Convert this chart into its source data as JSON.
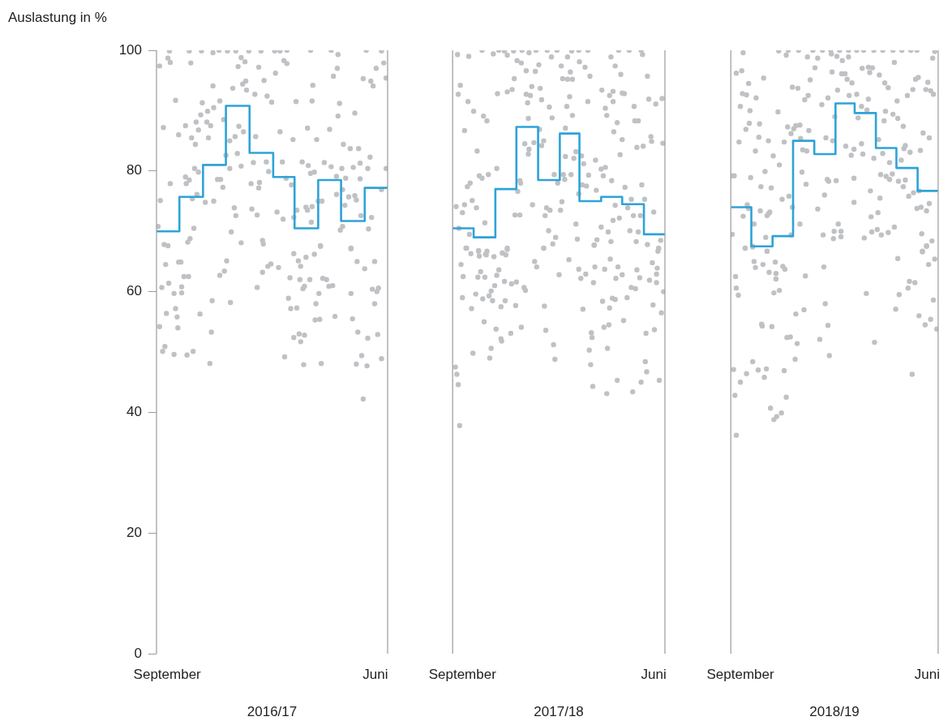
{
  "chart_data": [
    {
      "type": "scatter",
      "xlabel": "2016/17",
      "ylabel": "Auslastung in %",
      "xlim": [
        "2016-09-01",
        "2017-07-01"
      ],
      "xticks": [
        {
          "value": "2016-09-15",
          "label": "September"
        },
        {
          "value": "2017-06-15",
          "label": "Juni"
        }
      ],
      "ylim": [
        0,
        100
      ],
      "yticks": [
        0,
        20,
        40,
        60,
        80,
        100
      ],
      "series": [
        {
          "color": "#bfc1c4",
          "marker": "circle",
          "x": [
            "2016-09-05",
            "2016-09-18",
            "2016-09-16",
            "2016-09-19",
            "2016-10-14",
            "2016-10-16",
            "2016-10-30",
            "2016-11-14",
            "2016-11-22",
            "2016-12-03",
            "2016-12-14",
            "2016-12-31",
            "2017-01-16",
            "2017-02-03",
            "2017-02-10",
            "2017-02-19",
            "2017-03-22",
            "2017-04-18",
            "2017-04-27",
            "2017-06-03",
            "2017-06-23",
            "2016-12-21",
            "2016-12-17",
            "2016-12-26",
            "2017-01-13",
            "2017-02-04",
            "2017-02-15",
            "2017-02-19",
            "2017-04-26",
            "2017-04-21",
            "2017-06-16",
            "2017-06-26",
            "2017-06-29",
            "2017-05-30",
            "2017-06-09",
            "2017-06-12",
            "2016-11-14",
            "2016-12-10",
            "2016-12-23",
            "2016-12-27",
            "2016-12-28",
            "2017-01-08",
            "2017-01-20",
            "2017-01-24",
            "2017-01-30",
            "2017-03-25",
            "2017-03-24",
            "2017-03-03",
            "2016-09-26",
            "2016-10-31",
            "2016-11-23",
            "2017-04-29",
            "2016-11-07",
            "2016-11-15",
            "2016-10-29",
            "2017-04-27",
            "2017-05-19",
            "2016-11-28",
            "2016-09-10",
            "2016-10-09",
            "2016-10-23",
            "2016-11-06",
            "2016-11-11",
            "2016-12-18",
            "2016-10-26",
            "2016-09-30",
            "2016-10-17",
            "2016-11-08",
            "2016-10-22",
            "2016-12-06",
            "2016-12-13",
            "2016-12-24",
            "2017-01-09",
            "2017-02-10",
            "2017-02-27",
            "2017-03-18",
            "2017-03-30",
            "2017-04-16",
            "2017-05-04",
            "2017-05-13",
            "2017-05-24",
            "2017-06-08",
            "2016-12-01",
            "2016-12-16",
            "2017-01-06",
            "2016-12-21",
            "2016-12-06",
            "2017-01-23",
            "2017-02-13",
            "2017-03-11",
            "2017-03-19",
            "2017-04-09",
            "2017-04-18",
            "2017-05-02",
            "2017-05-17",
            "2017-05-26",
            "2017-06-05",
            "2017-06-29",
            "2016-10-21",
            "2016-10-26",
            "2017-01-26",
            "2017-03-22",
            "2017-03-27",
            "2016-10-09",
            "2016-10-14",
            "2016-11-20",
            "2016-11-24",
            "2017-01-14",
            "2017-01-03",
            "2017-02-18",
            "2017-02-25",
            "2017-04-25",
            "2017-05-07",
            "2017-05-26",
            "2016-09-19",
            "2016-10-10",
            "2016-11-27",
            "2017-01-13",
            "2017-05-03",
            "2017-06-23",
            "2017-04-25",
            "2017-05-11",
            "2017-05-19",
            "2017-05-21",
            "2016-10-18",
            "2016-10-24",
            "2016-09-06",
            "2016-11-04",
            "2016-11-15",
            "2017-04-06",
            "2017-04-01",
            "2017-05-06",
            "2016-12-12",
            "2017-01-04",
            "2016-12-14",
            "2017-01-11",
            "2017-02-06",
            "2017-02-14",
            "2017-03-04",
            "2017-03-16",
            "2017-03-18",
            "2017-03-24",
            "2017-02-28",
            "2017-03-23",
            "2017-05-27",
            "2017-06-10",
            "2016-10-20",
            "2016-09-03",
            "2016-12-08",
            "2017-05-03",
            "2017-04-30",
            "2017-06-06",
            "2016-10-15",
            "2016-10-12",
            "2016-09-11",
            "2016-09-16",
            "2016-12-21",
            "2017-01-18",
            "2017-01-19",
            "2017-04-04",
            "2017-05-14",
            "2016-09-13",
            "2016-09-30",
            "2016-10-03",
            "2016-12-02",
            "2016-11-23",
            "2016-11-29",
            "2017-01-18",
            "2017-01-25",
            "2017-01-29",
            "2017-02-08",
            "2017-02-28",
            "2017-03-06",
            "2017-03-09",
            "2017-03-16",
            "2017-03-27",
            "2017-04-04",
            "2017-05-14",
            "2017-05-22",
            "2017-06-01",
            "2017-06-14",
            "2016-10-07",
            "2016-10-13",
            "2016-09-08",
            "2016-09-17",
            "2016-09-24",
            "2016-10-04",
            "2016-10-04",
            "2017-01-11",
            "2017-02-23",
            "2017-03-08",
            "2017-03-21",
            "2017-04-07",
            "2017-04-12",
            "2017-04-15",
            "2017-04-20",
            "2017-03-12",
            "2017-03-14",
            "2017-04-02",
            "2017-05-14",
            "2017-06-11",
            "2017-06-17",
            "2017-06-19",
            "2016-11-13",
            "2016-12-07",
            "2017-02-21",
            "2017-02-24",
            "2017-03-04",
            "2017-03-29",
            "2017-06-14",
            "2016-09-26",
            "2016-09-14",
            "2016-09-28",
            "2016-10-28",
            "2017-03-28",
            "2017-04-03",
            "2017-04-23",
            "2017-05-16",
            "2016-09-05",
            "2016-09-29",
            "2016-11-12",
            "2017-05-23",
            "2017-06-05",
            "2017-06-18",
            "2017-02-28",
            "2017-03-07",
            "2017-03-14",
            "2017-03-09",
            "2016-09-12",
            "2016-09-09",
            "2016-09-24",
            "2016-10-11",
            "2016-10-19",
            "2016-11-10",
            "2017-02-16",
            "2017-03-13",
            "2017-04-05",
            "2017-05-21",
            "2017-06-04",
            "2017-05-28",
            "2017-06-23",
            "2017-05-30"
          ],
          "values": [
            97.4,
            99.9,
            98.7,
            98,
            99.9,
            97.9,
            99.9,
            99.6,
            100,
            99.9,
            99.9,
            99.9,
            99.9,
            99.9,
            99.9,
            100,
            100,
            100,
            99.3,
            100,
            99.9,
            98.8,
            97.3,
            98.1,
            97.2,
            96.2,
            98.3,
            97.8,
            97,
            95.7,
            97,
            97.9,
            95.4,
            95.3,
            94.9,
            94.1,
            94.1,
            93.7,
            94.4,
            94.9,
            93.4,
            92.7,
            95,
            92.4,
            91.4,
            94.2,
            91.6,
            91.5,
            91.7,
            91.3,
            91.6,
            91.2,
            89.9,
            90.5,
            89.3,
            89.1,
            89.6,
            88.5,
            87.2,
            87.5,
            88.1,
            88.1,
            87.5,
            87.4,
            86.8,
            86,
            85.5,
            85.5,
            84.4,
            85,
            85.7,
            86.5,
            85.7,
            86.5,
            85.2,
            87.1,
            85.2,
            86.9,
            84.4,
            83.7,
            83.7,
            82.3,
            82.6,
            82.9,
            81.4,
            80.8,
            80.4,
            81.5,
            81.5,
            81.5,
            80.9,
            81.4,
            80.7,
            80.4,
            80.6,
            81.3,
            80.4,
            80.4,
            80.4,
            79.8,
            79.9,
            79.6,
            79.8,
            79,
            78.5,
            78.6,
            78.6,
            78.1,
            77.9,
            78.8,
            77.7,
            79.1,
            78.8,
            78.7,
            77.9,
            77.9,
            77.3,
            77.2,
            76.9,
            76.9,
            76.1,
            75.7,
            75.9,
            75.2,
            75.4,
            76.1,
            75.1,
            74.8,
            75,
            75,
            75,
            74.3,
            73.9,
            73.7,
            72.6,
            72.7,
            73.2,
            72,
            73.5,
            74,
            73.5,
            74.1,
            72.3,
            71.5,
            72.6,
            72.3,
            70.5,
            70.8,
            69.9,
            70.8,
            70.2,
            70.4,
            68.8,
            68.2,
            67.8,
            67.6,
            68.1,
            68.5,
            67.9,
            67.5,
            67.2,
            64.5,
            64.9,
            64.9,
            65.1,
            62.7,
            63.4,
            63.2,
            64.2,
            64.6,
            64,
            66.3,
            65.1,
            64.2,
            65.7,
            66.2,
            67.6,
            67.1,
            65,
            63.8,
            65,
            62.5,
            62.5,
            60.7,
            61.4,
            59.7,
            60.8,
            59.8,
            60.7,
            62.3,
            62,
            62,
            62.2,
            62,
            60.9,
            61,
            60.5,
            60.9,
            59.7,
            59.7,
            60.4,
            60,
            60.6,
            58.5,
            58.2,
            58.9,
            57.2,
            57.3,
            58,
            58,
            57.2,
            56.4,
            55.8,
            56.3,
            55.3,
            55.4,
            55.9,
            55.5,
            54.2,
            54,
            53.3,
            53.3,
            52.3,
            52.9,
            52.4,
            53,
            52.8,
            51.7,
            50.9,
            50.1,
            49.6,
            49.5,
            50.1,
            48.1,
            49.2,
            47.9,
            48.1,
            48,
            47.7,
            49.4,
            48.9,
            42.2
          ]
        },
        {
          "type": "step",
          "color": "#2ea3d8",
          "x": [
            "2016-09",
            "2016-10",
            "2016-11",
            "2016-12",
            "2017-01",
            "2017-02",
            "2017-03",
            "2017-04",
            "2017-05",
            "2017-06",
            "2017-07"
          ],
          "values": [
            70,
            75.7,
            81,
            90.8,
            83,
            79,
            70.5,
            78.5,
            71.7,
            77.2,
            77.2
          ]
        }
      ]
    },
    {
      "type": "scatter",
      "xlabel": "2017/18",
      "xlim": [
        "2017-09-01",
        "2018-07-01"
      ],
      "xticks": [
        {
          "value": "2017-09-15",
          "label": "September"
        },
        {
          "value": "2018-06-15",
          "label": "Juni"
        }
      ],
      "ylim": [
        0,
        100
      ],
      "yticks": [
        0,
        20,
        40,
        60,
        80,
        100
      ],
      "tick_labels": "x",
      "series": [
        {
          "color": "#bfc1c4",
          "marker": "circle",
          "x": [
            "2017-09-08",
            "2017-09-24",
            "2017-10-13",
            "2017-10-29",
            "2017-11-06",
            "2017-11-14",
            "2017-11-18",
            "2017-11-27",
            "2017-12-09",
            "2017-12-19",
            "2017-12-29",
            "2018-01-14",
            "2018-01-28",
            "2018-02-18",
            "2018-02-28",
            "2018-03-13",
            "2018-04-26",
            "2018-05-11",
            "2018-05-28",
            "2018-05-30",
            "2017-12-02",
            "2017-12-08",
            "2017-12-15",
            "2018-01-02",
            "2017-12-28",
            "2018-01-20",
            "2018-02-03",
            "2018-02-12",
            "2018-02-16",
            "2018-03-01",
            "2018-03-09",
            "2018-02-05",
            "2018-02-12",
            "2018-02-19",
            "2018-03-16",
            "2018-04-15",
            "2018-04-21",
            "2018-04-29",
            "2018-06-06",
            "2017-09-12",
            "2017-09-09",
            "2017-11-28",
            "2017-11-25",
            "2017-11-18",
            "2017-11-04",
            "2017-12-23",
            "2018-01-04",
            "2017-12-15",
            "2017-12-21",
            "2017-12-17",
            "2018-01-06",
            "2018-01-17",
            "2018-02-15",
            "2018-02-11",
            "2018-03-13",
            "2018-04-02",
            "2018-04-13",
            "2018-04-18",
            "2018-04-18",
            "2018-05-01",
            "2018-05-04",
            "2018-04-07",
            "2018-04-09",
            "2018-06-08",
            "2018-06-18",
            "2018-06-27",
            "2017-09-23",
            "2017-10-01",
            "2017-10-15",
            "2017-10-20",
            "2017-09-18",
            "2018-05-18",
            "2018-04-24",
            "2018-05-19",
            "2018-05-24",
            "2018-04-19",
            "2018-05-01",
            "2018-06-11",
            "2018-06-12",
            "2018-06-28",
            "2018-05-22",
            "2018-05-31",
            "2018-04-28",
            "2017-12-18",
            "2018-01-21",
            "2018-02-19",
            "2018-02-09",
            "2018-01-03",
            "2018-01-09",
            "2017-12-13",
            "2017-12-19",
            "2017-12-26",
            "2018-01-06",
            "2017-12-18",
            "2017-10-06",
            "2018-02-09",
            "2018-02-21",
            "2018-02-24",
            "2018-03-04",
            "2018-03-07",
            "2018-03-24",
            "2018-04-01",
            "2018-04-07",
            "2018-04-04",
            "2018-04-16",
            "2018-03-14",
            "2018-01-24",
            "2018-02-06",
            "2018-02-08",
            "2018-02-17",
            "2018-01-29",
            "2017-11-03",
            "2017-10-22",
            "2017-10-09",
            "2017-10-13",
            "2017-09-26",
            "2017-09-22",
            "2017-12-06",
            "2017-12-07",
            "2017-12-03",
            "2018-03-05",
            "2018-03-11",
            "2018-03-25",
            "2018-05-05",
            "2018-05-29",
            "2018-02-28",
            "2018-06-02",
            "2018-05-14",
            "2017-09-06",
            "2017-09-18",
            "2017-09-29",
            "2017-10-05",
            "2017-09-15",
            "2017-12-24",
            "2018-01-13",
            "2018-01-18",
            "2018-02-02",
            "2018-02-04",
            "2018-01-11",
            "2017-11-29",
            "2017-12-06",
            "2018-04-21",
            "2018-05-09",
            "2018-05-17",
            "2018-05-27",
            "2018-06-15",
            "2018-04-27",
            "2018-04-18",
            "2018-04-01",
            "2018-04-11",
            "2018-05-12",
            "2018-05-24",
            "2018-02-24",
            "2017-10-17",
            "2017-09-10",
            "2017-09-25",
            "2018-01-16",
            "2018-01-26",
            "2018-01-22",
            "2018-01-09",
            "2018-02-26",
            "2018-03-26",
            "2018-03-22",
            "2018-04-15",
            "2018-05-21",
            "2018-06-06",
            "2018-06-25",
            "2018-06-22",
            "2017-09-21",
            "2017-10-08",
            "2017-10-18",
            "2017-11-11",
            "2017-11-18",
            "2017-09-20",
            "2017-09-27",
            "2017-10-08",
            "2017-10-09",
            "2017-10-20",
            "2017-10-19",
            "2017-10-30",
            "2017-11-11",
            "2017-11-16",
            "2017-11-18",
            "2018-01-09",
            "2018-03-22",
            "2018-06-22",
            "2018-06-21",
            "2017-09-13",
            "2017-09-16",
            "2017-10-11",
            "2017-10-07",
            "2017-10-17",
            "2017-11-06",
            "2017-11-03",
            "2017-12-27",
            "2017-12-30",
            "2018-02-14",
            "2018-01-31",
            "2018-02-28",
            "2018-03-10",
            "2018-03-03",
            "2018-03-23",
            "2018-04-06",
            "2018-04-14",
            "2018-04-25",
            "2018-05-01",
            "2018-04-22",
            "2018-03-21",
            "2018-05-22",
            "2018-05-26",
            "2018-06-13",
            "2018-06-20",
            "2018-06-19",
            "2018-06-09",
            "2018-06-19",
            "2018-06-29",
            "2017-11-14",
            "2017-11-24",
            "2017-12-01",
            "2017-12-12",
            "2017-12-14",
            "2017-10-31",
            "2017-10-26",
            "2017-10-04",
            "2017-09-15",
            "2017-10-14",
            "2017-10-23",
            "2017-10-28",
            "2017-11-15",
            "2017-11-09",
            "2017-11-30",
            "2017-09-28",
            "2018-01-10",
            "2018-03-06",
            "2018-04-03",
            "2018-04-17",
            "2018-04-21",
            "2018-04-13",
            "2018-05-08",
            "2018-05-14",
            "2018-05-20",
            "2018-06-14",
            "2018-06-26",
            "2017-10-16",
            "2017-11-02",
            "2017-11-23",
            "2017-12-08",
            "2017-11-09",
            "2017-11-10",
            "2018-01-12",
            "2018-03-18",
            "2018-03-19",
            "2018-04-05",
            "2018-04-12",
            "2018-05-03",
            "2018-06-04",
            "2018-06-16",
            "2017-09-30",
            "2017-10-26",
            "2017-10-24",
            "2018-01-23",
            "2018-01-25",
            "2018-03-15",
            "2018-04-10",
            "2018-03-17",
            "2017-09-05",
            "2017-09-07",
            "2017-09-09",
            "2018-06-03",
            "2018-06-05",
            "2018-04-24",
            "2018-03-20",
            "2018-04-09",
            "2018-05-16",
            "2018-05-28",
            "2018-06-23",
            "2017-09-11"
          ],
          "values": [
            99.3,
            99,
            100,
            99.4,
            100,
            99.9,
            99.2,
            99.9,
            100,
            99.6,
            100,
            100,
            100,
            99.9,
            100,
            100,
            100,
            100,
            100,
            99.3,
            98.3,
            97.9,
            96.6,
            97.6,
            96.5,
            98.9,
            97.4,
            98.9,
            96.4,
            98.1,
            97.2,
            95.3,
            95.2,
            95.2,
            95.7,
            98.9,
            97.4,
            96,
            95.7,
            94.2,
            92.7,
            95.3,
            93.5,
            93.1,
            92.8,
            94,
            93.7,
            92.7,
            92.5,
            91.3,
            91.8,
            90.6,
            92.3,
            90.7,
            91.5,
            93.4,
            92.5,
            93.2,
            91.5,
            92.9,
            92.8,
            90.4,
            89.2,
            91.9,
            91.1,
            92,
            91.5,
            89.9,
            89.1,
            88.3,
            86.7,
            90.7,
            88,
            88.3,
            88.3,
            86.5,
            85.2,
            85.7,
            84.9,
            84.6,
            83.9,
            84.1,
            82.7,
            88.7,
            88.8,
            89.2,
            87.1,
            86.9,
            85,
            84.5,
            83.6,
            84.7,
            84.2,
            82.8,
            83.3,
            82.4,
            82.1,
            83.2,
            82.5,
            81.2,
            81.8,
            80.3,
            80.6,
            79.2,
            78.4,
            79.3,
            79.4,
            79.4,
            78.6,
            79.4,
            78,
            80.4,
            79.4,
            79.2,
            78.8,
            78,
            77.4,
            78.4,
            78,
            76.6,
            77.7,
            77.5,
            76.8,
            77.3,
            77.7,
            76.2,
            75.3,
            75.3,
            74.1,
            74.4,
            75.1,
            73.9,
            73.1,
            74.4,
            73.9,
            73.5,
            73.5,
            74.9,
            72.6,
            72.7,
            72.7,
            74.3,
            73.9,
            72.6,
            72.6,
            73.2,
            72.2,
            71.8,
            70.7,
            69.9,
            70.1,
            69.9,
            71.2,
            71.4,
            70.5,
            69.5,
            70.1,
            69,
            67.9,
            67.2,
            68.7,
            68.6,
            67.7,
            68.3,
            68.3,
            67.8,
            68.5,
            67.2,
            67.2,
            66.7,
            66.2,
            66.4,
            67,
            67.2,
            66.3,
            66.8,
            65.9,
            66.7,
            66.1,
            65.8,
            66.4,
            66.1,
            67.2,
            67.2,
            67.7,
            67.1,
            66.7,
            64.5,
            62.5,
            63.3,
            62.4,
            62.4,
            63.6,
            62.7,
            65,
            64.1,
            65.3,
            62.8,
            63.7,
            62.9,
            62.2,
            64.1,
            63.7,
            65.4,
            64.1,
            62.8,
            62.2,
            61.5,
            63.6,
            62.3,
            64.8,
            63.9,
            62.9,
            61.9,
            61.5,
            60,
            61.7,
            61.3,
            61.6,
            60.7,
            60.2,
            61,
            60.1,
            59.6,
            59,
            58.8,
            59.3,
            58.5,
            58.5,
            57.5,
            57.7,
            57.2,
            57.6,
            57.1,
            58.4,
            58.9,
            58.7,
            57.3,
            59,
            60.7,
            60.5,
            57.8,
            56.5,
            55,
            53.8,
            53.1,
            54.1,
            52.2,
            51.8,
            53.6,
            53.2,
            52.4,
            54.1,
            54.5,
            55.2,
            53.1,
            53.7,
            49.8,
            50.6,
            49,
            51.2,
            48.8,
            50.3,
            50.6,
            47.9,
            47.5,
            46.3,
            44.6,
            48.4,
            46.7,
            45.3,
            44.3,
            43.1,
            43.4,
            45,
            45.3,
            37.8
          ]
        },
        {
          "type": "step",
          "color": "#2ea3d8",
          "x": [
            "2017-09",
            "2017-10",
            "2017-11",
            "2017-12",
            "2018-01",
            "2018-02",
            "2018-03",
            "2018-04",
            "2018-05",
            "2018-06",
            "2018-07"
          ],
          "values": [
            70.5,
            69,
            77,
            87.3,
            78.5,
            86.2,
            75,
            75.7,
            74.5,
            69.5,
            69.5
          ]
        }
      ]
    },
    {
      "type": "scatter",
      "xlabel": "2018/19",
      "xlim": [
        "2018-09-01",
        "2019-07-01"
      ],
      "xticks": [
        {
          "value": "2018-09-15",
          "label": "September"
        },
        {
          "value": "2019-06-15",
          "label": "Juni"
        }
      ],
      "ylim": [
        0,
        100
      ],
      "yticks": [
        0,
        20,
        40,
        60,
        80,
        100
      ],
      "tick_labels": "x",
      "series": [
        {
          "color": "#bfc1c4",
          "marker": "circle",
          "x": [
            "2018-09-19",
            "2018-11-10",
            "2018-11-21",
            "2018-11-24",
            "2018-12-09",
            "2018-12-30",
            "2019-01-13",
            "2019-01-25",
            "2019-02-07",
            "2019-02-20",
            "2019-03-04",
            "2019-03-14",
            "2019-03-29",
            "2019-04-11",
            "2019-04-26",
            "2019-05-09",
            "2019-05-22",
            "2019-05-31",
            "2019-06-26",
            "2019-06-23",
            "2018-12-22",
            "2019-01-06",
            "2019-01-26",
            "2019-02-03",
            "2019-02-11",
            "2019-02-20",
            "2019-04-28",
            "2019-01-02",
            "2018-09-09",
            "2018-09-17",
            "2018-09-27",
            "2018-10-19",
            "2018-11-30",
            "2018-12-08",
            "2018-12-26",
            "2019-01-27",
            "2019-02-10",
            "2019-02-15",
            "2019-02-18",
            "2019-02-25",
            "2019-03-12",
            "2019-03-21",
            "2019-03-27",
            "2019-03-23",
            "2019-04-06",
            "2019-04-14",
            "2019-04-19",
            "2019-05-29",
            "2019-06-02",
            "2019-06-16",
            "2019-06-13",
            "2019-06-20",
            "2019-06-24",
            "2019-05-25",
            "2019-05-17",
            "2018-09-18",
            "2018-09-24",
            "2018-10-08",
            "2018-09-15",
            "2018-09-29",
            "2018-11-09",
            "2018-12-18",
            "2018-12-23",
            "2019-01-12",
            "2019-01-21",
            "2019-02-04",
            "2019-02-21",
            "2019-03-04",
            "2019-03-21",
            "2019-03-11",
            "2019-03-19",
            "2019-05-02",
            "2019-04-15",
            "2019-04-26",
            "2019-05-03",
            "2019-04-13",
            "2019-01-31",
            "2019-03-06",
            "2018-09-28",
            "2018-10-13",
            "2018-09-23",
            "2018-11-23",
            "2018-12-02",
            "2018-12-05",
            "2018-12-11",
            "2018-11-28",
            "2018-12-24",
            "2019-05-11",
            "2019-06-09",
            "2019-06-18",
            "2018-09-13",
            "2018-10-12",
            "2018-10-26",
            "2018-11-18",
            "2018-12-12",
            "2019-01-18",
            "2019-01-28",
            "2019-04-05",
            "2018-10-07",
            "2018-11-02",
            "2018-11-11",
            "2018-12-15",
            "2018-12-21",
            "2019-02-16",
            "2019-02-24",
            "2019-02-28",
            "2019-03-11",
            "2019-03-13",
            "2019-03-29",
            "2019-04-11",
            "2019-04-21",
            "2019-05-12",
            "2019-05-14",
            "2019-05-21",
            "2019-06-05",
            "2019-05-08",
            "2018-09-03",
            "2018-09-06",
            "2018-09-30",
            "2018-10-21",
            "2018-10-15",
            "2018-10-30",
            "2018-12-14",
            "2018-12-20",
            "2019-01-20",
            "2019-01-22",
            "2019-02-02",
            "2019-02-28",
            "2019-04-08",
            "2019-04-16",
            "2019-04-21",
            "2019-04-25",
            "2019-05-04",
            "2019-05-14",
            "2019-05-11",
            "2019-03-24",
            "2019-04-07",
            "2019-05-19",
            "2019-05-26",
            "2019-06-03",
            "2018-11-15",
            "2018-11-25",
            "2019-01-16",
            "2019-02-28",
            "2018-09-25",
            "2018-09-27",
            "2018-09-19",
            "2018-10-14",
            "2018-10-26",
            "2018-10-28",
            "2018-10-24",
            "2018-10-05",
            "2018-11-30",
            "2018-12-11",
            "2019-01-06",
            "2019-03-25",
            "2019-04-04",
            "2019-05-31",
            "2019-06-06",
            "2019-06-18",
            "2019-06-14",
            "2018-09-03",
            "2018-10-22",
            "2018-10-24",
            "2018-09-22",
            "2018-10-03",
            "2018-11-28",
            "2019-01-14",
            "2019-01-30",
            "2019-02-05",
            "2019-02-09",
            "2019-02-09",
            "2019-01-29",
            "2019-03-15",
            "2019-03-26",
            "2019-04-03",
            "2019-04-09",
            "2019-04-19",
            "2019-04-28",
            "2019-06-07",
            "2019-06-22",
            "2019-06-14",
            "2019-06-08",
            "2018-09-22",
            "2018-10-03",
            "2018-10-24",
            "2018-10-05",
            "2018-10-07",
            "2018-10-18",
            "2018-11-05",
            "2018-10-27",
            "2018-11-06",
            "2018-11-06",
            "2018-11-16",
            "2018-11-19",
            "2018-12-19",
            "2019-01-15",
            "2018-09-08",
            "2018-09-09",
            "2018-09-12",
            "2018-11-03",
            "2018-11-11",
            "2018-12-05",
            "2018-12-17",
            "2019-01-17",
            "2018-10-16",
            "2018-10-17",
            "2018-10-31",
            "2018-11-22",
            "2018-11-27",
            "2018-12-07",
            "2019-01-09",
            "2019-01-21",
            "2019-01-23",
            "2018-12-04",
            "2019-03-18",
            "2019-03-30",
            "2019-05-03",
            "2019-05-05",
            "2019-04-30",
            "2019-05-20",
            "2019-05-28",
            "2019-05-18",
            "2019-06-08",
            "2019-06-14",
            "2019-06-17",
            "2019-06-26",
            "2019-06-24",
            "2019-06-03",
            "2019-06-12",
            "2019-06-20",
            "2019-06-29",
            "2019-05-24",
            "2018-09-05",
            "2018-10-03",
            "2018-10-11",
            "2018-10-23",
            "2018-09-24",
            "2018-10-20",
            "2018-11-18",
            "2018-09-15",
            "2018-09-07",
            "2018-11-21",
            "2018-10-29",
            "2018-11-14",
            "2018-11-07",
            "2018-11-03",
            "2018-09-09"
          ],
          "values": [
            99.6,
            99.9,
            99.2,
            100,
            100,
            100,
            100,
            100,
            100,
            100,
            100,
            100,
            100,
            100,
            100,
            100,
            100,
            100,
            99.8,
            98.7,
            98.9,
            98.7,
            99.4,
            99,
            98.3,
            98.9,
            98,
            97.1,
            96.2,
            96.6,
            94.5,
            95.4,
            93.9,
            93.7,
            95.1,
            96.4,
            96.1,
            96.1,
            95.2,
            94.6,
            97,
            97.2,
            97.1,
            96.3,
            95.9,
            94.6,
            93.8,
            95.2,
            95.5,
            94.7,
            93.5,
            93.3,
            92.7,
            93.5,
            92.5,
            92.8,
            92.6,
            92.1,
            90.7,
            90,
            89.8,
            91.8,
            92.5,
            91,
            92.1,
            93.4,
            92.5,
            92.7,
            91.9,
            90.7,
            90.1,
            91.6,
            89.9,
            89.4,
            88.7,
            88.3,
            89,
            88.8,
            87.9,
            87.8,
            86.9,
            87.3,
            87,
            87.5,
            87.6,
            86.2,
            86.7,
            87.4,
            86.3,
            85.5,
            84.8,
            85.6,
            85,
            84.8,
            85.4,
            85.5,
            85,
            85.2,
            83.3,
            82.5,
            81,
            83.5,
            83.3,
            84.1,
            82.6,
            83.6,
            84.5,
            82.8,
            82.1,
            82.9,
            81.4,
            83.7,
            84.2,
            83.1,
            83.4,
            81.8,
            79.2,
            79.2,
            78.9,
            79.9,
            77.4,
            77.2,
            79.8,
            77.8,
            78.6,
            78.3,
            78.4,
            78.8,
            79.4,
            79.1,
            78.6,
            79.5,
            78.3,
            78.5,
            77.4,
            76.7,
            75.5,
            75.8,
            76.4,
            76.7,
            75.3,
            75.8,
            76,
            74.8,
            74.4,
            73.8,
            72.5,
            73.4,
            72.9,
            73.2,
            72.6,
            71.2,
            74,
            71.2,
            73.7,
            72.4,
            73.1,
            73.8,
            74,
            74.6,
            73.4,
            69.5,
            69,
            66.7,
            67.2,
            67.4,
            69.4,
            69.4,
            70,
            71.2,
            70,
            69.1,
            68.8,
            68.9,
            69.9,
            70.3,
            69.4,
            69.8,
            70.7,
            69.6,
            68.4,
            67.5,
            66.6,
            67.2,
            67.5,
            66.7,
            65,
            64,
            64.5,
            64.9,
            63.2,
            63,
            62.1,
            64.2,
            63.7,
            62.6,
            64.1,
            62.5,
            60.6,
            59.4,
            59.8,
            60.2,
            56.3,
            57,
            58,
            54.6,
            54.3,
            54.2,
            52.4,
            52.5,
            51.4,
            52.1,
            54.4,
            49.4,
            48.8,
            59.7,
            51.6,
            65.5,
            59.5,
            57.1,
            61.7,
            61.5,
            60.6,
            66.7,
            67.6,
            64.5,
            65.4,
            58.6,
            56,
            54.5,
            55.4,
            53.8,
            46.3,
            47.1,
            48.4,
            47,
            47.2,
            46.4,
            45.8,
            46.9,
            45,
            42.8,
            42.5,
            40.7,
            39.9,
            39.3,
            38.8,
            36.2
          ]
        },
        {
          "type": "step",
          "color": "#2ea3d8",
          "x": [
            "2018-09",
            "2018-10",
            "2018-11",
            "2018-12",
            "2019-01",
            "2019-02",
            "2019-03",
            "2019-04",
            "2019-05",
            "2019-06",
            "2019-07"
          ],
          "values": [
            74,
            67.5,
            69.2,
            85,
            82.8,
            91.2,
            89.6,
            83.8,
            80.5,
            76.7,
            76.7
          ]
        }
      ]
    }
  ]
}
